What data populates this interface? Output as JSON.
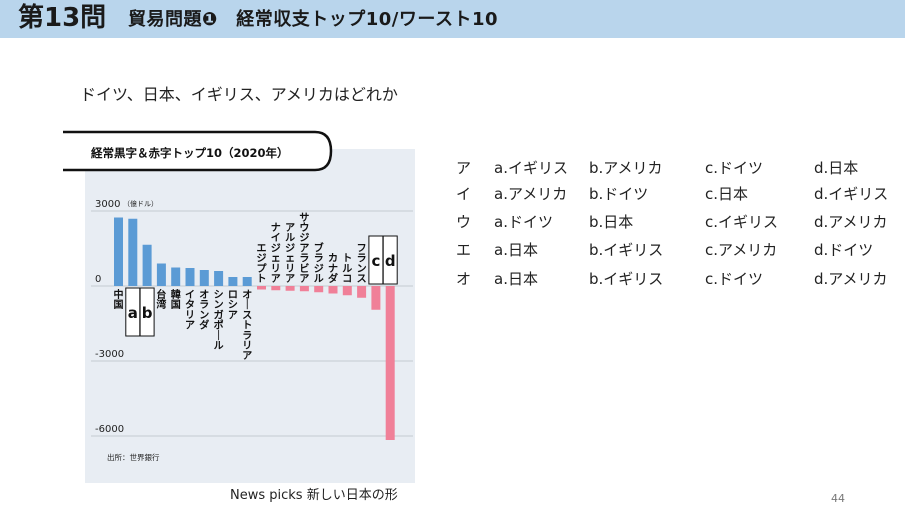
{
  "header": {
    "number": "第13問",
    "title": "貿易問題❶　経常収支トップ10/ワースト10"
  },
  "question": "ドイツ、日本、イギリス、アメリカはどれか",
  "chart_data": {
    "type": "bar",
    "title": "経常黒字＆赤字トップ10（2020年）",
    "unit": "（億ドル）",
    "ylim": [
      -6000,
      3000
    ],
    "ytick_labels": [
      "3000",
      "0",
      "-3000",
      "-6000"
    ],
    "yticks": [
      3000,
      0,
      -3000,
      -6000
    ],
    "grid": true,
    "source": "出所：世界銀行",
    "categories": [
      "中国",
      "a",
      "b",
      "台湾",
      "韓国",
      "イタリア",
      "オランダ",
      "シンガポール",
      "ロシア",
      "オーストラリア",
      "エジプト",
      "ナイジェリア",
      "アルジェリア",
      "サウジアラビア",
      "ブラジル",
      "カナダ",
      "トルコ",
      "フランス",
      "c",
      "d"
    ],
    "boxed": [
      "a",
      "b",
      "c",
      "d"
    ],
    "values": [
      2740,
      2690,
      1650,
      900,
      740,
      720,
      640,
      600,
      360,
      360,
      -140,
      -170,
      -190,
      -210,
      -250,
      -300,
      -370,
      -470,
      -950,
      -6160
    ],
    "colors": {
      "positive": "#5b9bd5",
      "negative": "#f08098",
      "background": "#e8edf3"
    }
  },
  "options": [
    {
      "label": "ア",
      "a": "a.イギリス",
      "b": "b.アメリカ",
      "c": "c.ドイツ",
      "d": "d.日本"
    },
    {
      "label": "イ",
      "a": "a.アメリカ",
      "b": "b.ドイツ",
      "c": "c.日本",
      "d": "d.イギリス"
    },
    {
      "label": "ウ",
      "a": "a.ドイツ",
      "b": "b.日本",
      "c": "c.イギリス",
      "d": "d.アメリカ"
    },
    {
      "label": "エ",
      "a": "a.日本",
      "b": "b.イギリス",
      "c": "c.アメリカ",
      "d": "d.ドイツ"
    },
    {
      "label": "オ",
      "a": "a.日本",
      "b": "b.イギリス",
      "c": "c.ドイツ",
      "d": "d.アメリカ"
    }
  ],
  "footer": "News picks 新しい日本の形",
  "page_number": "44"
}
